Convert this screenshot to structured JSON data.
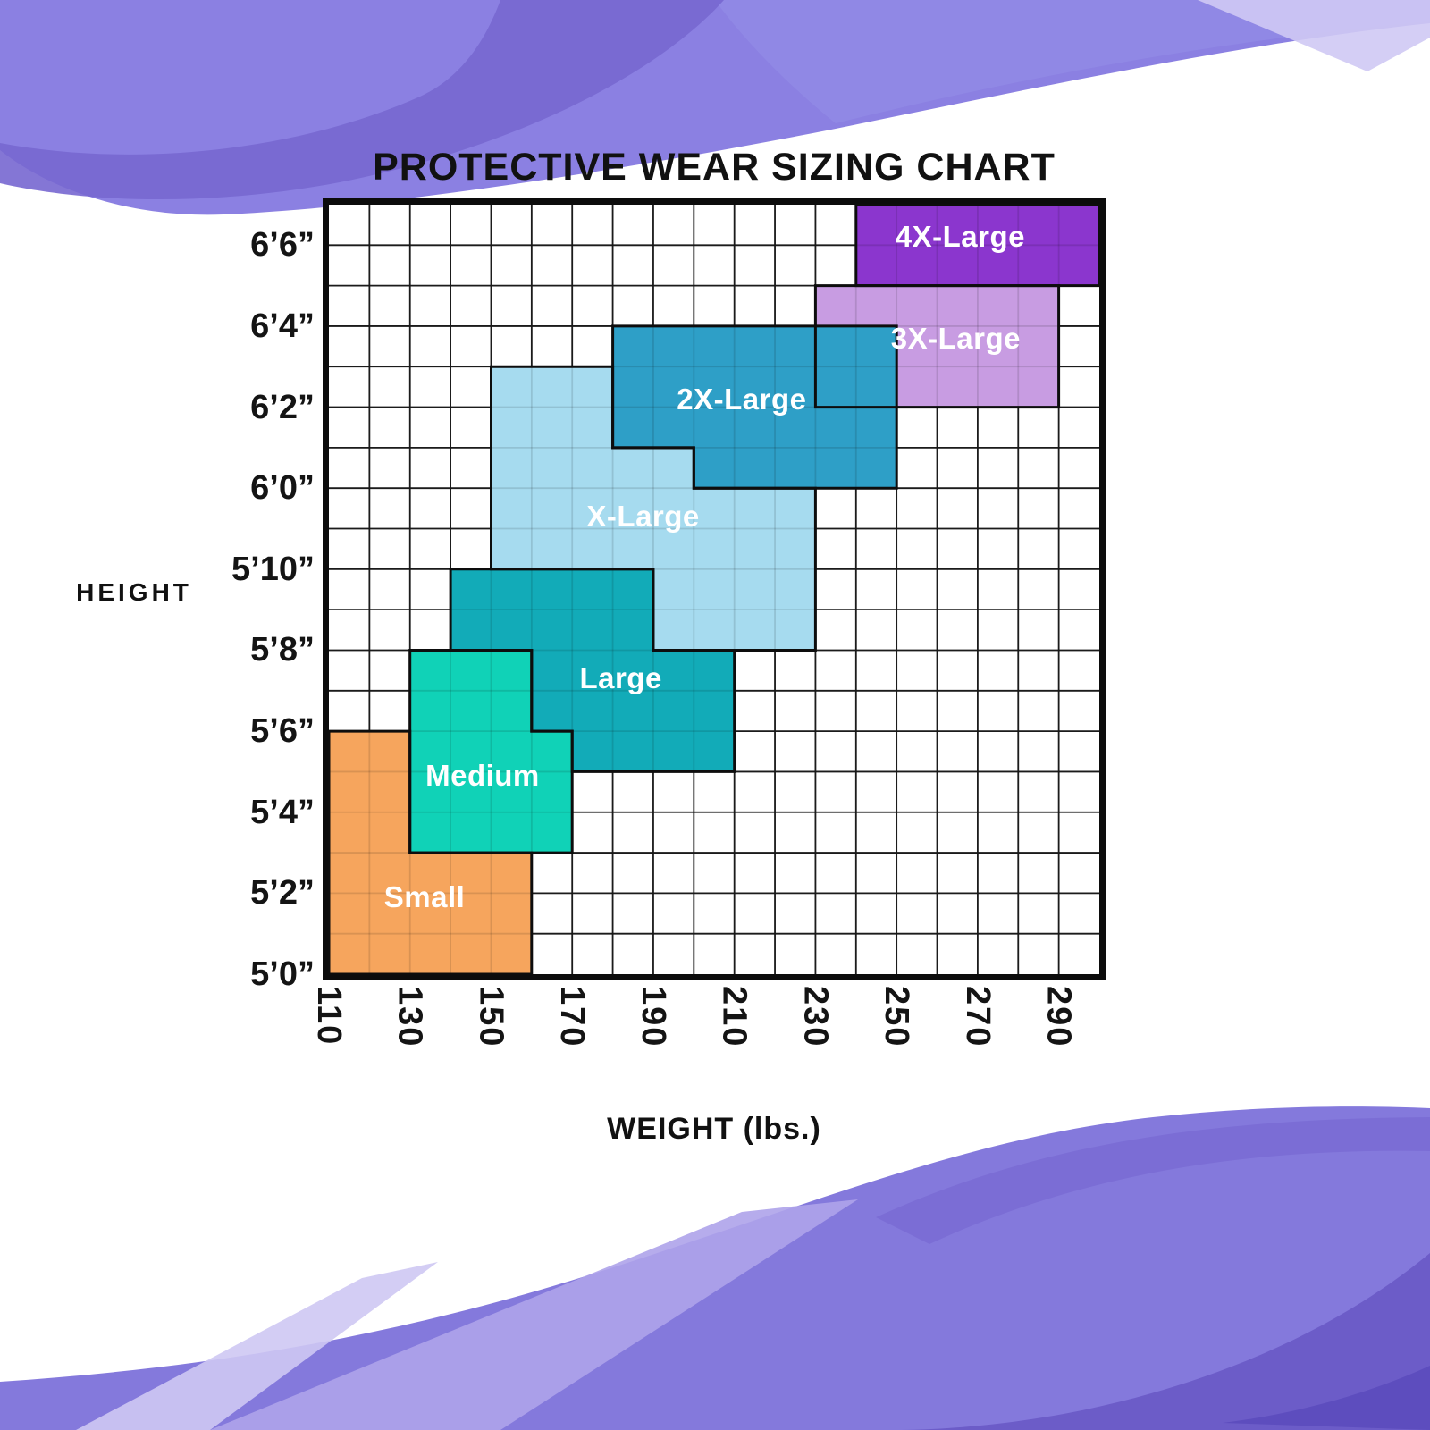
{
  "title": "PROTECTIVE WEAR SIZING CHART",
  "axes": {
    "y_title": "HEIGHT",
    "x_title": "WEIGHT (lbs.)"
  },
  "chart_data": {
    "type": "area",
    "title": "PROTECTIVE WEAR SIZING CHART",
    "xlabel": "WEIGHT (lbs.)",
    "ylabel": "HEIGHT",
    "grid": true,
    "x_axis": {
      "unit": "lbs",
      "min": 110,
      "max": 300,
      "cell_step": 10,
      "ticks": [
        {
          "label": "110",
          "value": 110
        },
        {
          "label": "130",
          "value": 130
        },
        {
          "label": "150",
          "value": 150
        },
        {
          "label": "170",
          "value": 170
        },
        {
          "label": "190",
          "value": 190
        },
        {
          "label": "210",
          "value": 210
        },
        {
          "label": "230",
          "value": 230
        },
        {
          "label": "250",
          "value": 250
        },
        {
          "label": "270",
          "value": 270
        },
        {
          "label": "290",
          "value": 290
        }
      ]
    },
    "y_axis": {
      "unit": "inches",
      "min_inches": 60,
      "max_inches": 79,
      "cell_step": 1,
      "ticks": [
        {
          "label": "6’6”",
          "value": 78
        },
        {
          "label": "6’4”",
          "value": 76
        },
        {
          "label": "6’2”",
          "value": 74
        },
        {
          "label": "6’0”",
          "value": 72
        },
        {
          "label": "5’10”",
          "value": 70
        },
        {
          "label": "5’8”",
          "value": 68
        },
        {
          "label": "5’6”",
          "value": 66
        },
        {
          "label": "5’4”",
          "value": 64
        },
        {
          "label": "5’2”",
          "value": 62
        },
        {
          "label": "5’0”",
          "value": 60
        }
      ]
    },
    "regions": [
      {
        "id": "3xl",
        "label": "3X-Large",
        "color": "#C89CE2",
        "label_at": [
          264.6,
          75.7
        ],
        "polygon": [
          [
            230,
            77
          ],
          [
            290,
            77
          ],
          [
            290,
            74
          ],
          [
            230,
            74
          ]
        ]
      },
      {
        "id": "xl",
        "label": "X-Large",
        "color": "#A6DBEF",
        "label_at": [
          187.5,
          71.3
        ],
        "polygon": [
          [
            150,
            75
          ],
          [
            180,
            75
          ],
          [
            180,
            73
          ],
          [
            200,
            73
          ],
          [
            200,
            72
          ],
          [
            230,
            72
          ],
          [
            230,
            68
          ],
          [
            190,
            68
          ],
          [
            190,
            70
          ],
          [
            150,
            70
          ]
        ]
      },
      {
        "id": "2xl",
        "label": "2X-Large",
        "color": "#2E9FC7",
        "label_at": [
          211.8,
          74.2
        ],
        "polygon": [
          [
            180,
            76
          ],
          [
            250,
            76
          ],
          [
            250,
            72
          ],
          [
            200,
            72
          ],
          [
            200,
            73
          ],
          [
            180,
            73
          ]
        ]
      },
      {
        "id": "large",
        "label": "Large",
        "color": "#12ABB8",
        "label_at": [
          182.0,
          67.3
        ],
        "polygon": [
          [
            140,
            70
          ],
          [
            190,
            70
          ],
          [
            190,
            68
          ],
          [
            210,
            68
          ],
          [
            210,
            65
          ],
          [
            170,
            65
          ],
          [
            170,
            66
          ],
          [
            160,
            66
          ],
          [
            160,
            68
          ],
          [
            140,
            68
          ]
        ]
      },
      {
        "id": "medium",
        "label": "Medium",
        "color": "#10D2B7",
        "label_at": [
          147.9,
          64.9
        ],
        "polygon": [
          [
            130,
            68
          ],
          [
            160,
            68
          ],
          [
            160,
            66
          ],
          [
            170,
            66
          ],
          [
            170,
            63
          ],
          [
            130,
            63
          ]
        ]
      },
      {
        "id": "small",
        "label": "Small",
        "color": "#F6A55D",
        "label_at": [
          133.6,
          61.9
        ],
        "polygon": [
          [
            110,
            66
          ],
          [
            130,
            66
          ],
          [
            130,
            63
          ],
          [
            160,
            63
          ],
          [
            160,
            60
          ],
          [
            110,
            60
          ]
        ]
      },
      {
        "id": "4xl",
        "label": "4X-Large",
        "color": "#8B36CE",
        "label_at": [
          265.7,
          78.2
        ],
        "polygon": [
          [
            240,
            79
          ],
          [
            300,
            79
          ],
          [
            300,
            77
          ],
          [
            240,
            77
          ]
        ]
      }
    ]
  }
}
